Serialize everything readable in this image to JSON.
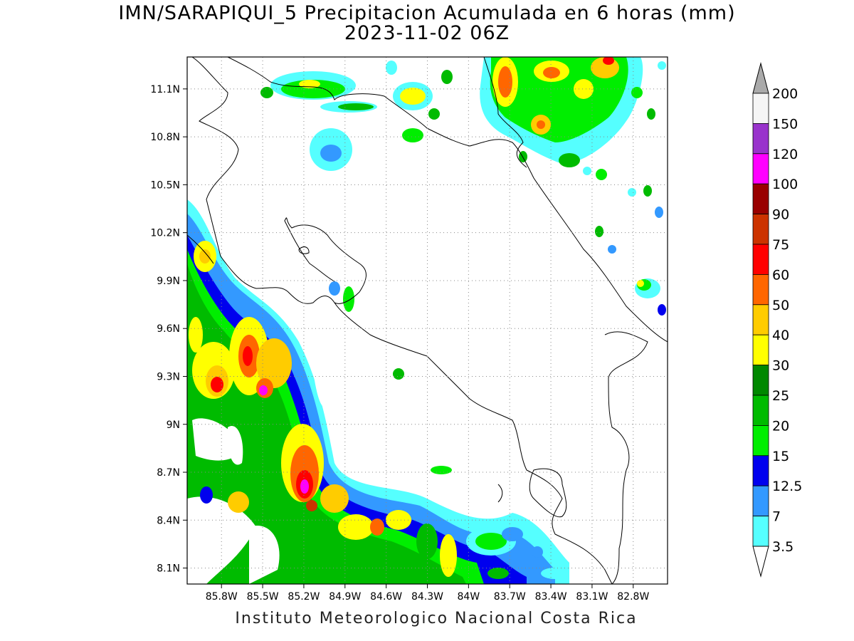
{
  "title": {
    "line1": "IMN/SARAPIQUI_5 Precipitacion Acumulada en 6 horas (mm)",
    "line2": "2023-11-02 06Z"
  },
  "credit": "Instituto Meteorologico Nacional Costa Rica",
  "map": {
    "lon_range": [
      -86.05,
      -82.55
    ],
    "lat_range": [
      8.0,
      11.3
    ],
    "lon_ticks": [
      "85.8W",
      "85.5W",
      "85.2W",
      "84.9W",
      "84.6W",
      "84.3W",
      "84W",
      "83.7W",
      "83.4W",
      "83.1W",
      "82.8W"
    ],
    "lat_ticks": [
      "11.1N",
      "10.8N",
      "10.5N",
      "10.2N",
      "9.9N",
      "9.6N",
      "9.3N",
      "9N",
      "8.7N",
      "8.4N",
      "8.1N"
    ]
  },
  "colorbar": {
    "colors": [
      "#55ffff",
      "#3399ff",
      "#0000ee",
      "#00ee00",
      "#00bb00",
      "#008800",
      "#ffff00",
      "#ffcc00",
      "#ff6600",
      "#ff0000",
      "#cc3300",
      "#990000",
      "#ff00ff",
      "#9933cc",
      "#f5f5f5",
      "#aaaaaa"
    ],
    "labels": [
      "3.5",
      "7",
      "12.5",
      "15",
      "20",
      "25",
      "30",
      "40",
      "50",
      "60",
      "75",
      "90",
      "100",
      "120",
      "150",
      "200"
    ]
  },
  "precip_levels": [
    3.5,
    7,
    12.5,
    15,
    20,
    25,
    30,
    40,
    50,
    60,
    75,
    90,
    100,
    120,
    150,
    200
  ]
}
